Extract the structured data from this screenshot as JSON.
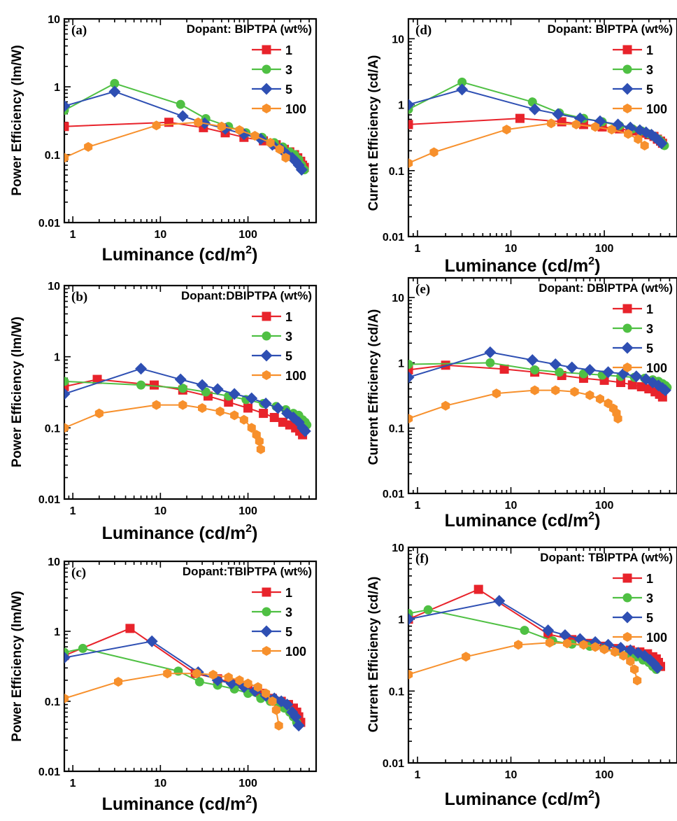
{
  "colors": {
    "1": "#e8232b",
    "3": "#4fc043",
    "5": "#2e4fb3",
    "100": "#f7902c"
  },
  "chart_data": [
    {
      "type": "line",
      "panel": "(a)",
      "legend_title": "Dopant: BIPTPA (wt%)",
      "xlabel": "Luminance (cd/m²)",
      "ylabel": "Power Efficiency (lm/W)",
      "x_scale": "log",
      "y_scale": "log",
      "xlim": [
        0.8,
        600
      ],
      "ylim": [
        0.01,
        10
      ],
      "x_ticks": [
        "1",
        "10",
        "100"
      ],
      "y_ticks": [
        "0.01",
        "0.1",
        "1",
        "10"
      ],
      "legend_position": "top-right",
      "grid": false,
      "series": [
        {
          "name": "1",
          "marker": "square",
          "x": [
            0.8,
            12.5,
            31,
            55,
            90,
            150,
            210,
            260,
            300,
            340,
            370,
            400,
            420,
            440
          ],
          "y": [
            0.26,
            0.3,
            0.25,
            0.21,
            0.18,
            0.16,
            0.14,
            0.12,
            0.11,
            0.1,
            0.09,
            0.08,
            0.07,
            0.065
          ]
        },
        {
          "name": "3",
          "marker": "circle",
          "x": [
            0.8,
            3,
            17,
            33,
            60,
            95,
            145,
            200,
            250,
            300,
            340,
            380,
            410,
            440
          ],
          "y": [
            0.45,
            1.12,
            0.55,
            0.34,
            0.26,
            0.21,
            0.18,
            0.15,
            0.13,
            0.11,
            0.1,
            0.085,
            0.07,
            0.06
          ]
        },
        {
          "name": "5",
          "marker": "diamond",
          "x": [
            0.8,
            3,
            18,
            32,
            55,
            90,
            140,
            190,
            240,
            280,
            320,
            350,
            380,
            410
          ],
          "y": [
            0.52,
            0.85,
            0.37,
            0.29,
            0.24,
            0.2,
            0.17,
            0.14,
            0.12,
            0.1,
            0.09,
            0.08,
            0.07,
            0.06
          ]
        },
        {
          "name": "100",
          "marker": "hexagon",
          "x": [
            0.8,
            1.5,
            9,
            27,
            50,
            80,
            120,
            180,
            230,
            270
          ],
          "y": [
            0.09,
            0.13,
            0.27,
            0.3,
            0.26,
            0.23,
            0.19,
            0.15,
            0.12,
            0.09
          ]
        }
      ]
    },
    {
      "type": "line",
      "panel": "(d)",
      "legend_title": "Dopant: BIPTPA (wt%)",
      "xlabel": "Luminance (cd/m²)",
      "ylabel": "Current Efficiency (cd/A)",
      "x_scale": "log",
      "y_scale": "log",
      "xlim": [
        0.8,
        600
      ],
      "ylim": [
        0.01,
        20
      ],
      "x_ticks": [
        "1",
        "10",
        "100"
      ],
      "y_ticks": [
        "0.01",
        "0.1",
        "1",
        "10"
      ],
      "legend_position": "top-right",
      "grid": false,
      "series": [
        {
          "name": "1",
          "marker": "square",
          "x": [
            0.8,
            12.5,
            35,
            60,
            95,
            145,
            200,
            250,
            300,
            340,
            370,
            400,
            420
          ],
          "y": [
            0.5,
            0.62,
            0.55,
            0.5,
            0.46,
            0.43,
            0.4,
            0.37,
            0.35,
            0.33,
            0.3,
            0.28,
            0.26
          ]
        },
        {
          "name": "3",
          "marker": "circle",
          "x": [
            0.8,
            3,
            17,
            33,
            60,
            95,
            145,
            200,
            250,
            300,
            340,
            380,
            410,
            440
          ],
          "y": [
            0.85,
            2.2,
            1.1,
            0.75,
            0.62,
            0.55,
            0.48,
            0.43,
            0.4,
            0.36,
            0.33,
            0.3,
            0.27,
            0.24
          ]
        },
        {
          "name": "5",
          "marker": "diamond",
          "x": [
            0.8,
            3,
            18,
            32,
            55,
            90,
            140,
            190,
            240,
            280,
            320,
            350,
            380,
            410
          ],
          "y": [
            1.0,
            1.7,
            0.85,
            0.72,
            0.62,
            0.56,
            0.5,
            0.45,
            0.41,
            0.38,
            0.35,
            0.32,
            0.29,
            0.26
          ]
        },
        {
          "name": "100",
          "marker": "hexagon",
          "x": [
            0.8,
            1.5,
            9,
            27,
            50,
            80,
            120,
            180,
            230,
            270
          ],
          "y": [
            0.13,
            0.19,
            0.42,
            0.52,
            0.5,
            0.46,
            0.42,
            0.36,
            0.3,
            0.24
          ]
        }
      ]
    },
    {
      "type": "line",
      "panel": "(b)",
      "legend_title": "Dopant:DBIPTPA (wt%)",
      "xlabel": "Luminance (cd/m²)",
      "ylabel": "Power Efficiency (lm/W)",
      "x_scale": "log",
      "y_scale": "log",
      "xlim": [
        0.8,
        600
      ],
      "ylim": [
        0.01,
        10
      ],
      "x_ticks": [
        "1",
        "10",
        "100"
      ],
      "y_ticks": [
        "0.01",
        "0.1",
        "1",
        "10"
      ],
      "legend_position": "top-right",
      "grid": false,
      "series": [
        {
          "name": "1",
          "marker": "square",
          "x": [
            0.8,
            1.9,
            8.5,
            18,
            35,
            60,
            100,
            150,
            200,
            250,
            300,
            350,
            390,
            420
          ],
          "y": [
            0.38,
            0.48,
            0.4,
            0.34,
            0.28,
            0.23,
            0.19,
            0.16,
            0.14,
            0.12,
            0.11,
            0.1,
            0.09,
            0.08
          ]
        },
        {
          "name": "3",
          "marker": "circle",
          "x": [
            0.8,
            6,
            18,
            33,
            60,
            95,
            150,
            210,
            270,
            330,
            380,
            420,
            450,
            470
          ],
          "y": [
            0.45,
            0.4,
            0.36,
            0.32,
            0.28,
            0.25,
            0.22,
            0.2,
            0.18,
            0.16,
            0.15,
            0.13,
            0.12,
            0.11
          ]
        },
        {
          "name": "5",
          "marker": "diamond",
          "x": [
            0.8,
            6,
            17,
            30,
            45,
            70,
            110,
            160,
            220,
            280,
            330,
            380,
            420,
            450
          ],
          "y": [
            0.3,
            0.68,
            0.48,
            0.4,
            0.35,
            0.3,
            0.26,
            0.22,
            0.19,
            0.16,
            0.14,
            0.12,
            0.1,
            0.09
          ]
        },
        {
          "name": "100",
          "marker": "hexagon",
          "x": [
            0.8,
            2,
            9,
            18,
            30,
            48,
            70,
            90,
            110,
            125,
            135,
            140
          ],
          "y": [
            0.1,
            0.16,
            0.21,
            0.21,
            0.19,
            0.17,
            0.15,
            0.13,
            0.1,
            0.08,
            0.065,
            0.05
          ]
        }
      ]
    },
    {
      "type": "line",
      "panel": "(e)",
      "legend_title": "Dopant: DBIPTPA (wt%)",
      "xlabel": "Luminance (cd/m²)",
      "ylabel": "Current Efficiency (cd/A)",
      "x_scale": "log",
      "y_scale": "log",
      "xlim": [
        0.8,
        600
      ],
      "ylim": [
        0.01,
        20
      ],
      "x_ticks": [
        "1",
        "10",
        "100"
      ],
      "y_ticks": [
        "0.01",
        "0.1",
        "1",
        "10"
      ],
      "legend_position": "top-right",
      "grid": false,
      "series": [
        {
          "name": "1",
          "marker": "square",
          "x": [
            0.8,
            2,
            8.5,
            18,
            35,
            60,
            100,
            150,
            200,
            250,
            300,
            350,
            390,
            420
          ],
          "y": [
            0.78,
            0.92,
            0.8,
            0.72,
            0.64,
            0.58,
            0.54,
            0.5,
            0.46,
            0.43,
            0.4,
            0.36,
            0.33,
            0.3
          ]
        },
        {
          "name": "3",
          "marker": "circle",
          "x": [
            0.8,
            6,
            18,
            33,
            60,
            95,
            150,
            210,
            270,
            330,
            380,
            420,
            450,
            470
          ],
          "y": [
            0.95,
            1.0,
            0.78,
            0.72,
            0.68,
            0.65,
            0.62,
            0.6,
            0.58,
            0.55,
            0.52,
            0.48,
            0.45,
            0.42
          ]
        },
        {
          "name": "5",
          "marker": "diamond",
          "x": [
            0.8,
            6,
            17,
            30,
            45,
            70,
            110,
            160,
            220,
            280,
            330,
            380,
            420,
            450
          ],
          "y": [
            0.6,
            1.45,
            1.1,
            0.95,
            0.85,
            0.78,
            0.72,
            0.68,
            0.62,
            0.56,
            0.5,
            0.45,
            0.41,
            0.38
          ]
        },
        {
          "name": "100",
          "marker": "hexagon",
          "x": [
            0.8,
            2,
            7,
            18,
            30,
            48,
            70,
            90,
            110,
            125,
            135,
            140
          ],
          "y": [
            0.14,
            0.22,
            0.34,
            0.38,
            0.38,
            0.36,
            0.32,
            0.28,
            0.24,
            0.2,
            0.17,
            0.14
          ]
        }
      ]
    },
    {
      "type": "line",
      "panel": "(c)",
      "legend_title": "Dopant:TBIPTPA (wt%)",
      "xlabel": "Luminance (cd/m²)",
      "ylabel": "Power Efficiency (lm/W)",
      "x_scale": "log",
      "y_scale": "log",
      "xlim": [
        0.8,
        600
      ],
      "ylim": [
        0.01,
        10
      ],
      "x_ticks": [
        "1",
        "10",
        "100"
      ],
      "y_ticks": [
        "0.01",
        "0.1",
        "1",
        "10"
      ],
      "legend_position": "top-right",
      "grid": false,
      "series": [
        {
          "name": "1",
          "marker": "square",
          "x": [
            0.8,
            4.5,
            25,
            45,
            70,
            100,
            140,
            190,
            240,
            290,
            330,
            360,
            380,
            400
          ],
          "y": [
            0.45,
            1.1,
            0.25,
            0.21,
            0.18,
            0.15,
            0.13,
            0.11,
            0.1,
            0.09,
            0.08,
            0.07,
            0.06,
            0.05
          ]
        },
        {
          "name": "3",
          "marker": "circle",
          "x": [
            0.8,
            1.3,
            16,
            28,
            45,
            70,
            100,
            140,
            180,
            220,
            260,
            300,
            330,
            360
          ],
          "y": [
            0.5,
            0.57,
            0.27,
            0.19,
            0.17,
            0.15,
            0.13,
            0.11,
            0.1,
            0.09,
            0.08,
            0.07,
            0.06,
            0.05
          ]
        },
        {
          "name": "5",
          "marker": "diamond",
          "x": [
            0.8,
            8,
            27,
            45,
            65,
            90,
            120,
            160,
            200,
            240,
            280,
            320,
            350,
            380
          ],
          "y": [
            0.42,
            0.72,
            0.26,
            0.2,
            0.18,
            0.16,
            0.14,
            0.12,
            0.11,
            0.1,
            0.09,
            0.07,
            0.06,
            0.045
          ]
        },
        {
          "name": "100",
          "marker": "hexagon",
          "x": [
            0.8,
            3.3,
            12,
            26,
            40,
            60,
            80,
            100,
            130,
            160,
            190,
            210,
            225
          ],
          "y": [
            0.11,
            0.19,
            0.25,
            0.25,
            0.24,
            0.22,
            0.2,
            0.18,
            0.16,
            0.13,
            0.1,
            0.075,
            0.045
          ]
        }
      ]
    },
    {
      "type": "line",
      "panel": "(f)",
      "legend_title": "Dopant: TBIPTPA (wt%)",
      "xlabel": "Luminance (cd/m²)",
      "ylabel": "Current Efficiency (cd/A)",
      "x_scale": "log",
      "y_scale": "log",
      "xlim": [
        0.8,
        600
      ],
      "ylim": [
        0.01,
        10
      ],
      "x_ticks": [
        "1",
        "10",
        "100"
      ],
      "y_ticks": [
        "0.01",
        "0.1",
        "1",
        "10"
      ],
      "legend_position": "top-right",
      "grid": false,
      "series": [
        {
          "name": "1",
          "marker": "square",
          "x": [
            0.8,
            4.5,
            25,
            45,
            70,
            100,
            140,
            190,
            240,
            290,
            330,
            360,
            380,
            400
          ],
          "y": [
            1.0,
            2.6,
            0.62,
            0.52,
            0.46,
            0.42,
            0.39,
            0.37,
            0.35,
            0.33,
            0.3,
            0.28,
            0.25,
            0.22
          ]
        },
        {
          "name": "3",
          "marker": "circle",
          "x": [
            0.8,
            1.3,
            14,
            28,
            45,
            70,
            100,
            140,
            180,
            220,
            260,
            300,
            330,
            360
          ],
          "y": [
            1.2,
            1.35,
            0.7,
            0.5,
            0.45,
            0.42,
            0.39,
            0.36,
            0.33,
            0.3,
            0.27,
            0.25,
            0.22,
            0.2
          ]
        },
        {
          "name": "5",
          "marker": "diamond",
          "x": [
            0.8,
            7.5,
            25,
            38,
            55,
            80,
            110,
            150,
            190,
            230,
            270,
            310,
            340,
            370
          ],
          "y": [
            1.0,
            1.8,
            0.7,
            0.6,
            0.53,
            0.48,
            0.44,
            0.4,
            0.37,
            0.34,
            0.31,
            0.27,
            0.24,
            0.21
          ]
        },
        {
          "name": "100",
          "marker": "hexagon",
          "x": [
            0.8,
            3.3,
            12,
            26,
            40,
            60,
            80,
            100,
            130,
            160,
            190,
            210,
            225
          ],
          "y": [
            0.17,
            0.3,
            0.44,
            0.47,
            0.46,
            0.44,
            0.41,
            0.38,
            0.35,
            0.31,
            0.26,
            0.2,
            0.14
          ]
        }
      ]
    }
  ]
}
